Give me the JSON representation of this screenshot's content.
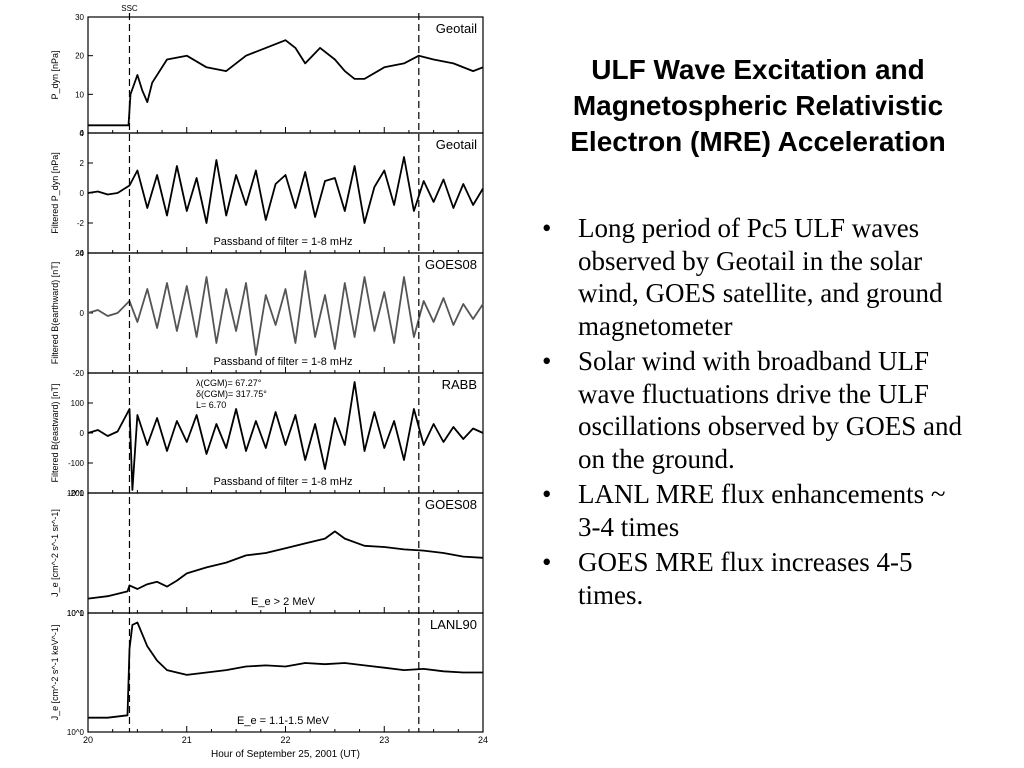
{
  "slide": {
    "title_lines": [
      "ULF Wave Excitation and",
      "Magnetospheric Relativistic",
      "Electron (MRE) Acceleration"
    ],
    "bullet_glyph": "•",
    "bullets": [
      "Long period of Pc5 ULF waves observed by Geotail in the solar wind, GOES satellite, and ground magnetometer",
      "Solar wind with broadband ULF wave fluctuations drive the ULF oscillations observed by GOES and on the ground.",
      "LANL MRE flux enhancements ~ 3-4 times",
      "GOES MRE flux increases 4-5 times."
    ]
  },
  "chart_data": {
    "type": "line",
    "xlabel": "Hour of September 25, 2001 (UT)",
    "x_ticks": [
      "20",
      "21",
      "22",
      "23",
      "24"
    ],
    "xlim": [
      20,
      24
    ],
    "markers": [
      {
        "label": "SSC",
        "x": 20.42
      },
      {
        "label": "",
        "x": 23.35
      }
    ],
    "panels": [
      {
        "tag": "Geotail",
        "ylabel": "P_dyn [nPa]",
        "ylim": [
          0,
          30
        ],
        "yticks": [
          "0",
          "10",
          "20",
          "30"
        ],
        "line_color": "#000000",
        "x": [
          20.0,
          20.2,
          20.41,
          20.43,
          20.5,
          20.55,
          20.6,
          20.65,
          20.8,
          21.0,
          21.2,
          21.4,
          21.6,
          21.8,
          22.0,
          22.1,
          22.2,
          22.35,
          22.5,
          22.6,
          22.7,
          22.8,
          23.0,
          23.2,
          23.35,
          23.5,
          23.7,
          23.9,
          24.0
        ],
        "y": [
          2,
          2,
          2,
          10,
          15,
          11,
          8,
          13,
          19,
          20,
          17,
          16,
          20,
          22,
          24,
          22,
          18,
          22,
          19,
          16,
          14,
          14,
          17,
          18,
          20,
          19,
          18,
          16,
          17
        ]
      },
      {
        "tag": "Geotail",
        "ylabel": "Filtered P_dyn [nPa]",
        "ylim": [
          -4,
          4
        ],
        "yticks": [
          "-4",
          "-2",
          "0",
          "2",
          "4"
        ],
        "annotation": "Passband of filter = 1-8 mHz",
        "line_color": "#000000",
        "x": [
          20.0,
          20.1,
          20.2,
          20.3,
          20.42,
          20.5,
          20.6,
          20.7,
          20.8,
          20.9,
          21.0,
          21.1,
          21.2,
          21.3,
          21.4,
          21.5,
          21.6,
          21.7,
          21.8,
          21.9,
          22.0,
          22.1,
          22.2,
          22.3,
          22.4,
          22.5,
          22.6,
          22.7,
          22.8,
          22.9,
          23.0,
          23.1,
          23.2,
          23.3,
          23.4,
          23.5,
          23.6,
          23.7,
          23.8,
          23.9,
          24.0
        ],
        "y": [
          0,
          0.1,
          -0.1,
          0,
          0.5,
          1.5,
          -1.0,
          1.2,
          -1.5,
          1.8,
          -1.2,
          1.0,
          -2.0,
          2.2,
          -1.5,
          1.2,
          -0.8,
          1.5,
          -1.8,
          0.6,
          1.2,
          -1.0,
          1.4,
          -1.6,
          0.8,
          1.0,
          -1.2,
          1.8,
          -2.0,
          0.4,
          1.5,
          -0.8,
          2.4,
          -1.2,
          0.8,
          -0.6,
          0.9,
          -1.0,
          0.6,
          -0.8,
          0.3
        ]
      },
      {
        "tag": "GOES08",
        "ylabel": "Filtered B(earthward) [nT]",
        "ylim": [
          -20,
          20
        ],
        "yticks": [
          "-20",
          "0",
          "20"
        ],
        "annotation": "Passband of filter = 1-8 mHz",
        "line_color": "#555555",
        "x": [
          20.0,
          20.1,
          20.2,
          20.3,
          20.42,
          20.5,
          20.6,
          20.7,
          20.8,
          20.9,
          21.0,
          21.1,
          21.2,
          21.3,
          21.4,
          21.5,
          21.6,
          21.7,
          21.8,
          21.9,
          22.0,
          22.1,
          22.2,
          22.3,
          22.4,
          22.5,
          22.6,
          22.7,
          22.8,
          22.9,
          23.0,
          23.1,
          23.2,
          23.3,
          23.4,
          23.5,
          23.6,
          23.7,
          23.8,
          23.9,
          24.0
        ],
        "y": [
          0,
          1,
          -1,
          0,
          4,
          -3,
          8,
          -5,
          10,
          -6,
          9,
          -8,
          12,
          -10,
          8,
          -6,
          10,
          -14,
          6,
          -4,
          8,
          -10,
          14,
          -8,
          6,
          -12,
          10,
          -8,
          12,
          -6,
          7,
          -10,
          12,
          -8,
          4,
          -3,
          5,
          -4,
          3,
          -2,
          3
        ]
      },
      {
        "tag": "RABB",
        "ylabel": "Filtered B(eastward) [nT]",
        "ylim": [
          -200,
          200
        ],
        "yticks": [
          "-200",
          "-100",
          "0",
          "100"
        ],
        "annotation": "Passband of filter = 1-8 mHz",
        "info_lines": [
          "λ(CGM)= 67.27°",
          "δ(CGM)= 317.75°",
          "L= 6.70"
        ],
        "line_color": "#000000",
        "x": [
          20.0,
          20.1,
          20.2,
          20.3,
          20.42,
          20.45,
          20.5,
          20.6,
          20.7,
          20.8,
          20.9,
          21.0,
          21.1,
          21.2,
          21.3,
          21.4,
          21.5,
          21.6,
          21.7,
          21.8,
          21.9,
          22.0,
          22.1,
          22.2,
          22.3,
          22.4,
          22.5,
          22.6,
          22.7,
          22.8,
          22.9,
          23.0,
          23.1,
          23.2,
          23.3,
          23.4,
          23.5,
          23.6,
          23.7,
          23.8,
          23.9,
          24.0
        ],
        "y": [
          0,
          10,
          -10,
          5,
          80,
          -190,
          60,
          -40,
          50,
          -60,
          40,
          -30,
          60,
          -70,
          30,
          -50,
          80,
          -60,
          40,
          -50,
          70,
          -40,
          60,
          -90,
          30,
          -120,
          50,
          -40,
          170,
          -60,
          70,
          -50,
          40,
          -90,
          80,
          -40,
          30,
          -30,
          20,
          -20,
          15,
          0
        ]
      },
      {
        "tag": "GOES08",
        "ylabel": "J_e [cm^-2 s^-1 sr^-1]",
        "ylim_log10": [
          0,
          1
        ],
        "yticks": [
          "10^0",
          "10^1"
        ],
        "annotation": "E_e > 2 MeV",
        "line_color": "#000000",
        "x": [
          20.0,
          20.2,
          20.4,
          20.42,
          20.5,
          20.6,
          20.7,
          20.8,
          20.9,
          21.0,
          21.2,
          21.4,
          21.6,
          21.8,
          22.0,
          22.2,
          22.4,
          22.5,
          22.6,
          22.8,
          23.0,
          23.2,
          23.4,
          23.6,
          23.8,
          24.0
        ],
        "y": [
          0.12,
          0.14,
          0.18,
          0.23,
          0.2,
          0.24,
          0.26,
          0.22,
          0.27,
          0.33,
          0.38,
          0.42,
          0.48,
          0.5,
          0.54,
          0.58,
          0.62,
          0.68,
          0.62,
          0.56,
          0.55,
          0.53,
          0.52,
          0.5,
          0.47,
          0.46
        ]
      },
      {
        "tag": "LANL90",
        "ylabel": "J_e [cm^-2 s^-1 keV^-1]",
        "ylim_log10": [
          0,
          1
        ],
        "yticks": [
          "10^0",
          "10^1"
        ],
        "annotation": "E_e = 1.1-1.5 MeV",
        "line_color": "#000000",
        "x": [
          20.0,
          20.2,
          20.4,
          20.42,
          20.45,
          20.5,
          20.6,
          20.7,
          20.8,
          21.0,
          21.2,
          21.4,
          21.6,
          21.8,
          22.0,
          22.2,
          22.4,
          22.6,
          22.8,
          23.0,
          23.2,
          23.4,
          23.6,
          23.8,
          24.0
        ],
        "y": [
          0.12,
          0.12,
          0.14,
          0.7,
          0.9,
          0.92,
          0.72,
          0.6,
          0.52,
          0.48,
          0.5,
          0.52,
          0.55,
          0.56,
          0.55,
          0.58,
          0.57,
          0.58,
          0.56,
          0.54,
          0.52,
          0.53,
          0.51,
          0.5,
          0.5
        ]
      }
    ]
  }
}
